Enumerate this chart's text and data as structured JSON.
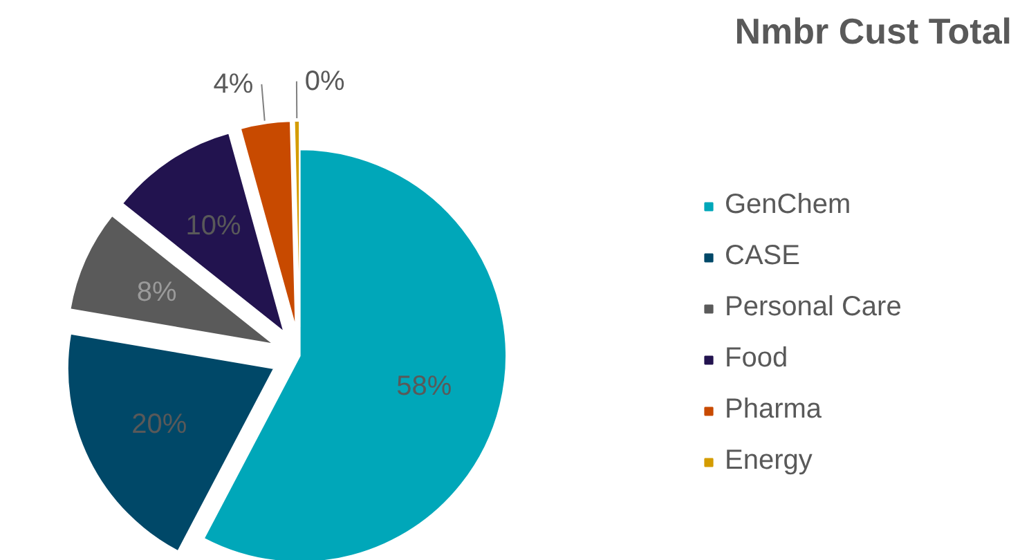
{
  "chart_data": {
    "type": "pie",
    "title": "Nmbr Cust Total",
    "categories": [
      "GenChem",
      "CASE",
      "Personal Care",
      "Food",
      "Pharma",
      "Energy"
    ],
    "values": [
      57.7,
      20,
      8,
      10,
      3.9,
      0.4
    ],
    "value_labels": [
      "58%",
      "20%",
      "8%",
      "10%",
      "4%",
      "0%"
    ],
    "colors": [
      "#00a7b9",
      "#004868",
      "#5a5a5a",
      "#22134f",
      "#c84a00",
      "#d49c00"
    ],
    "legend": "right"
  }
}
